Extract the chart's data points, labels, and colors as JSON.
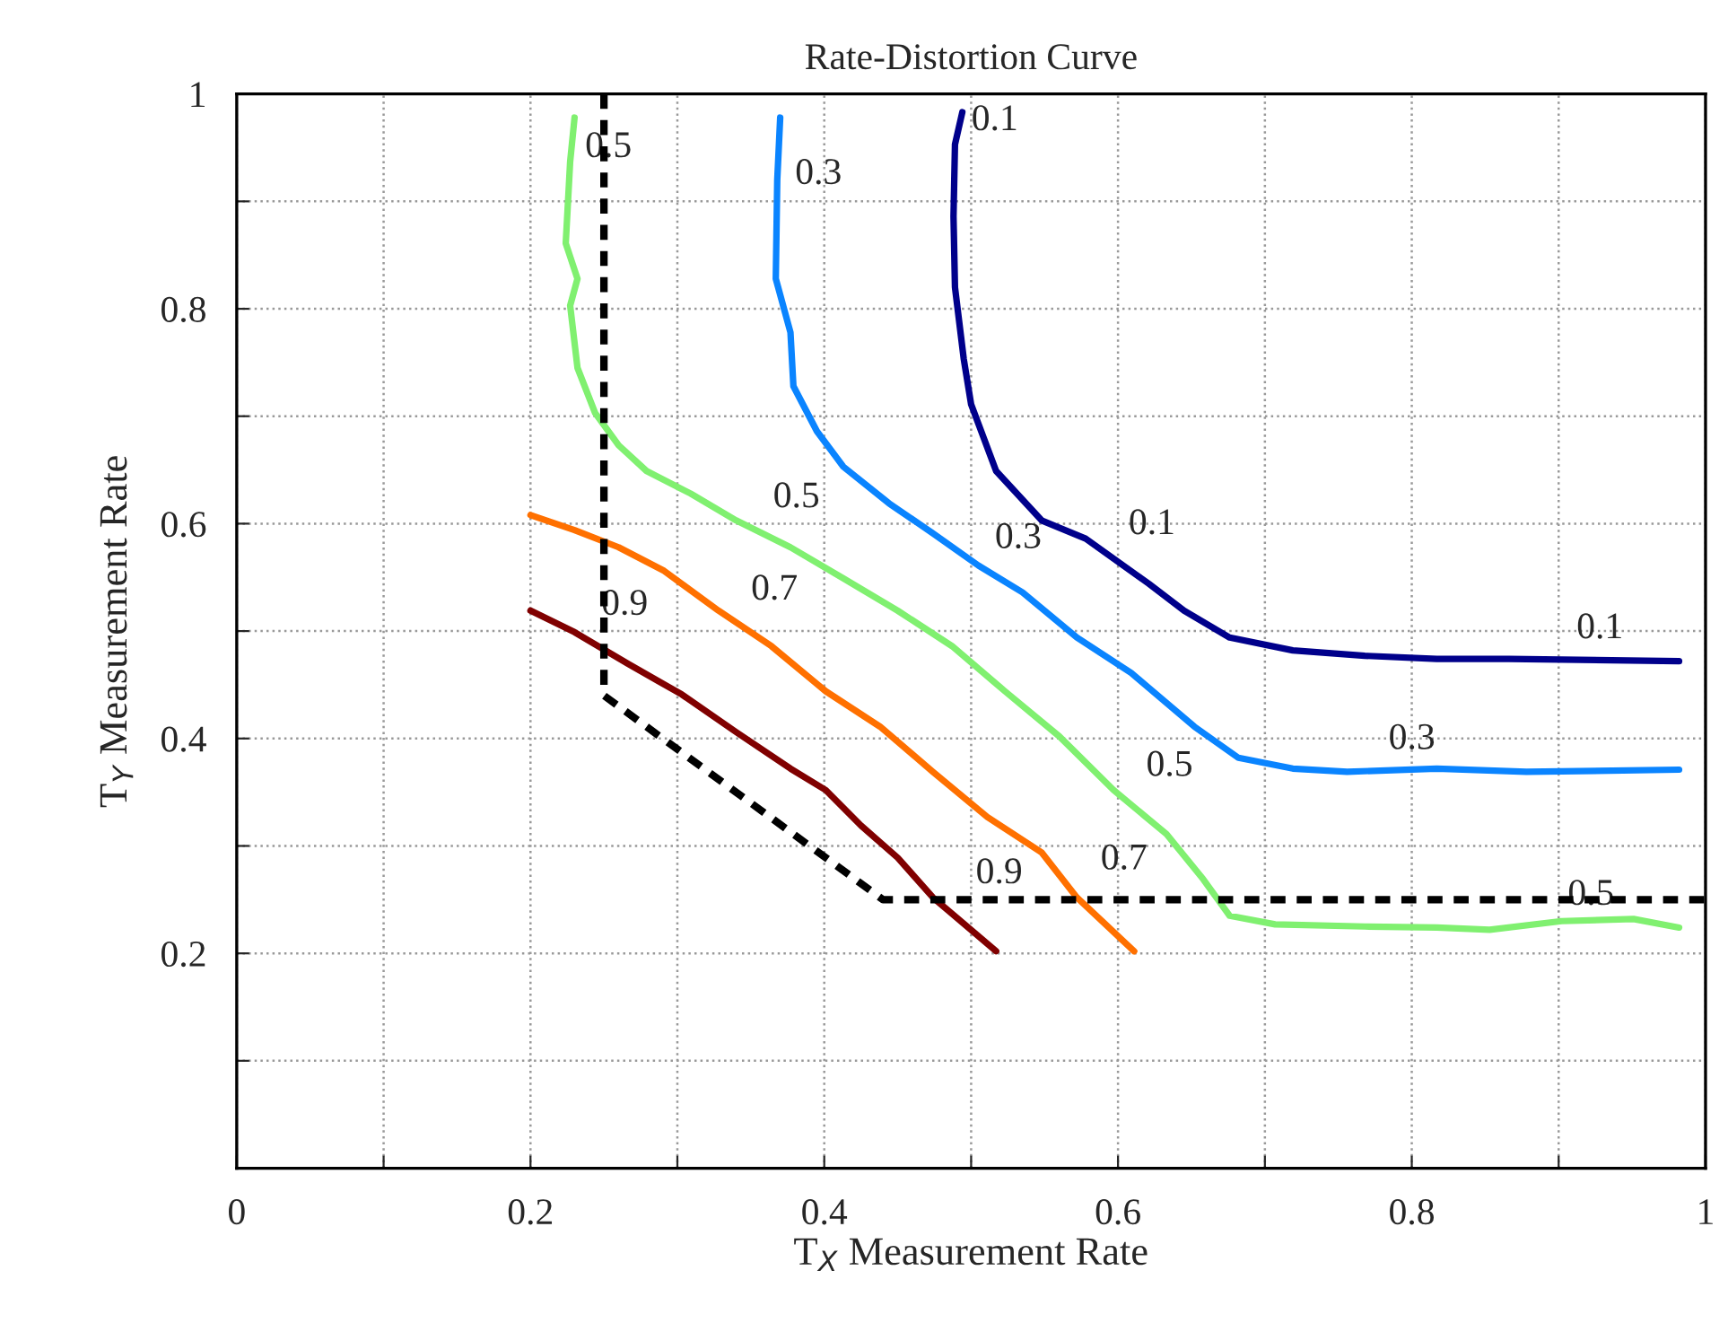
{
  "chart_data": {
    "type": "line",
    "title": "Rate-Distortion Curve",
    "xlabel": "T$_{X}$ Measurement Rate",
    "ylabel": "T$_{Y}$ Measurement Rate",
    "xlim": [
      0,
      1
    ],
    "ylim": [
      0,
      1
    ],
    "xticks": [
      {
        "value": 0,
        "label": "0"
      },
      {
        "value": 0.1,
        "label": null
      },
      0.2,
      {
        "value": 0.3,
        "label": null
      },
      0.4,
      {
        "value": 0.5,
        "label": null
      },
      0.6,
      {
        "value": 0.7,
        "label": null
      },
      0.8,
      {
        "value": 0.9,
        "label": null
      },
      1
    ],
    "yticks": [
      {
        "value": 0,
        "label": null
      },
      {
        "value": 0.1,
        "label": null
      },
      0.2,
      {
        "value": 0.3,
        "label": null
      },
      0.4,
      {
        "value": 0.5,
        "label": null
      },
      0.6,
      {
        "value": 0.7,
        "label": null
      },
      0.8,
      {
        "value": 0.9,
        "label": null
      },
      1
    ],
    "grid": true,
    "legend": false,
    "series": [
      {
        "color": "#00008b",
        "x": [
          0.494,
          0.489,
          0.488,
          0.489,
          0.495,
          0.5,
          0.517,
          0.548,
          0.578,
          0.621,
          0.645,
          0.676,
          0.719,
          0.768,
          0.817,
          0.866,
          0.982
        ],
        "values": [
          0.983,
          0.953,
          0.886,
          0.82,
          0.753,
          0.711,
          0.649,
          0.603,
          0.586,
          0.544,
          0.519,
          0.494,
          0.482,
          0.477,
          0.474,
          0.474,
          0.472
        ]
      },
      {
        "color": "#0a84ff",
        "x": [
          0.37,
          0.368,
          0.367,
          0.377,
          0.379,
          0.395,
          0.413,
          0.444,
          0.474,
          0.505,
          0.535,
          0.572,
          0.609,
          0.652,
          0.682,
          0.719,
          0.756,
          0.817,
          0.878,
          0.982
        ],
        "values": [
          0.978,
          0.92,
          0.828,
          0.778,
          0.728,
          0.686,
          0.653,
          0.619,
          0.591,
          0.561,
          0.536,
          0.494,
          0.461,
          0.411,
          0.382,
          0.372,
          0.369,
          0.372,
          0.369,
          0.371
        ]
      },
      {
        "color": "#80f070",
        "x": [
          0.23,
          0.227,
          0.224,
          0.232,
          0.227,
          0.232,
          0.244,
          0.26,
          0.279,
          0.309,
          0.34,
          0.377,
          0.413,
          0.45,
          0.487,
          0.523,
          0.56,
          0.597,
          0.633,
          0.658,
          0.676,
          0.707,
          0.768,
          0.817,
          0.853,
          0.902,
          0.951,
          0.982
        ],
        "values": [
          0.978,
          0.937,
          0.861,
          0.828,
          0.803,
          0.745,
          0.703,
          0.673,
          0.649,
          0.628,
          0.603,
          0.578,
          0.549,
          0.519,
          0.486,
          0.444,
          0.402,
          0.352,
          0.311,
          0.269,
          0.235,
          0.227,
          0.225,
          0.224,
          0.222,
          0.23,
          0.232,
          0.224
        ]
      },
      {
        "color": "#ff7000",
        "x": [
          0.2,
          0.23,
          0.26,
          0.291,
          0.328,
          0.364,
          0.401,
          0.438,
          0.474,
          0.511,
          0.548,
          0.572,
          0.611
        ],
        "values": [
          0.608,
          0.594,
          0.578,
          0.556,
          0.519,
          0.486,
          0.444,
          0.411,
          0.369,
          0.327,
          0.294,
          0.252,
          0.202
        ]
      },
      {
        "color": "#800000",
        "x": [
          0.2,
          0.23,
          0.267,
          0.303,
          0.34,
          0.377,
          0.401,
          0.425,
          0.45,
          0.474,
          0.517
        ],
        "values": [
          0.519,
          0.499,
          0.469,
          0.441,
          0.406,
          0.372,
          0.352,
          0.319,
          0.289,
          0.252,
          0.202
        ]
      },
      {
        "color": "#000000",
        "line_style": "dashed",
        "x": [
          0.25,
          0.25,
          0.44,
          1.0
        ],
        "values": [
          1.0,
          0.44,
          0.25,
          0.25
        ]
      }
    ],
    "annotations": [
      {
        "text": "0.5",
        "x": 0.227,
        "y": 0.92
      },
      {
        "text": "0.3",
        "x": 0.37,
        "y": 0.895
      },
      {
        "text": "0.1",
        "x": 0.49,
        "y": 0.945
      },
      {
        "text": "0.5",
        "x": 0.355,
        "y": 0.594
      },
      {
        "text": "0.7",
        "x": 0.34,
        "y": 0.508
      },
      {
        "text": "0.9",
        "x": 0.238,
        "y": 0.494
      },
      {
        "text": "0.3",
        "x": 0.506,
        "y": 0.556
      },
      {
        "text": "0.1",
        "x": 0.597,
        "y": 0.569
      },
      {
        "text": "0.1",
        "x": 0.902,
        "y": 0.472
      },
      {
        "text": "0.3",
        "x": 0.774,
        "y": 0.369
      },
      {
        "text": "0.5",
        "x": 0.609,
        "y": 0.344
      },
      {
        "text": "0.7",
        "x": 0.578,
        "y": 0.257
      },
      {
        "text": "0.9",
        "x": 0.493,
        "y": 0.244
      },
      {
        "text": "0.5",
        "x": 0.896,
        "y": 0.224
      }
    ]
  }
}
